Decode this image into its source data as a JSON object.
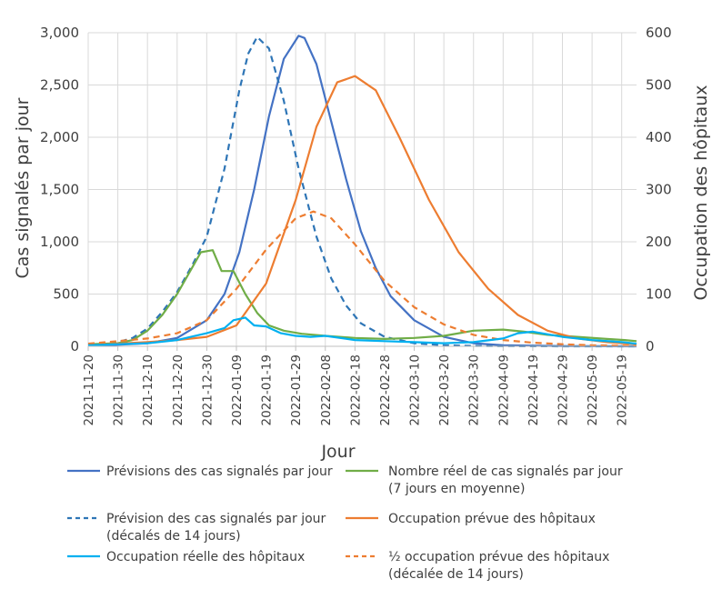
{
  "chart_data": {
    "type": "line",
    "xlabel": "Jour",
    "ylabel_left": "Cas signalés par jour",
    "ylabel_right": "Occupation des hôpitaux",
    "ylim_left": [
      0,
      3000
    ],
    "ylim_right": [
      0,
      600
    ],
    "yticks_left": [
      "0",
      "500",
      "1,000",
      "1,500",
      "2,000",
      "2,500",
      "3,000"
    ],
    "yticks_right": [
      "0",
      "100",
      "200",
      "300",
      "400",
      "500",
      "600"
    ],
    "xlim": [
      "2021-11-20",
      "2022-05-24"
    ],
    "xticks": [
      "2021-11-20",
      "2021-11-30",
      "2021-12-10",
      "2021-12-20",
      "2021-12-30",
      "2022-01-09",
      "2022-01-19",
      "2022-01-29",
      "2022-02-08",
      "2022-02-18",
      "2022-02-28",
      "2022-03-10",
      "2022-03-20",
      "2022-03-30",
      "2022-04-09",
      "2022-04-19",
      "2022-04-29",
      "2022-05-09",
      "2022-05-19"
    ],
    "grid": true,
    "legend_position": "bottom",
    "series": [
      {
        "name": "Prévisions des cas signalés par jour",
        "axis": "left",
        "color": "#4472c4",
        "dash": "solid",
        "x": [
          "2021-11-20",
          "2021-11-30",
          "2021-12-10",
          "2021-12-20",
          "2021-12-30",
          "2022-01-05",
          "2022-01-10",
          "2022-01-15",
          "2022-01-20",
          "2022-01-25",
          "2022-01-30",
          "2022-02-01",
          "2022-02-05",
          "2022-02-10",
          "2022-02-15",
          "2022-02-20",
          "2022-02-25",
          "2022-03-02",
          "2022-03-10",
          "2022-03-20",
          "2022-03-30",
          "2022-04-09",
          "2022-04-20",
          "2022-05-01",
          "2022-05-24"
        ],
        "y": [
          5,
          15,
          30,
          80,
          250,
          500,
          900,
          1500,
          2200,
          2750,
          2970,
          2950,
          2700,
          2150,
          1600,
          1100,
          750,
          480,
          250,
          90,
          30,
          10,
          5,
          2,
          0
        ]
      },
      {
        "name": "Prévision des cas signalés par jour (décalés de 14 jours)",
        "axis": "left",
        "color": "#2e75b6",
        "dash": "dashed",
        "x": [
          "2021-11-20",
          "2021-11-30",
          "2021-12-05",
          "2021-12-10",
          "2021-12-15",
          "2021-12-20",
          "2021-12-25",
          "2021-12-30",
          "2022-01-05",
          "2022-01-10",
          "2022-01-13",
          "2022-01-16",
          "2022-01-20",
          "2022-01-25",
          "2022-01-30",
          "2022-02-05",
          "2022-02-10",
          "2022-02-15",
          "2022-02-20",
          "2022-02-28",
          "2022-03-10",
          "2022-03-20",
          "2022-03-30",
          "2022-04-09",
          "2022-04-20",
          "2022-05-01",
          "2022-05-24"
        ],
        "y": [
          10,
          40,
          80,
          170,
          330,
          520,
          770,
          1050,
          1700,
          2450,
          2800,
          2960,
          2850,
          2350,
          1700,
          1050,
          650,
          390,
          220,
          90,
          30,
          10,
          4,
          2,
          1,
          0,
          0
        ]
      },
      {
        "name": "Nombre réel de cas signalés par jour (7 jours en moyenne)",
        "axis": "left",
        "color": "#70ad47",
        "dash": "solid",
        "x": [
          "2021-11-20",
          "2021-11-30",
          "2021-12-05",
          "2021-12-10",
          "2021-12-15",
          "2021-12-20",
          "2021-12-25",
          "2021-12-28",
          "2022-01-01",
          "2022-01-04",
          "2022-01-08",
          "2022-01-12",
          "2022-01-16",
          "2022-01-20",
          "2022-01-25",
          "2022-01-31",
          "2022-02-08",
          "2022-02-18",
          "2022-02-28",
          "2022-03-10",
          "2022-03-20",
          "2022-03-30",
          "2022-04-09",
          "2022-04-16",
          "2022-04-24",
          "2022-05-04",
          "2022-05-14",
          "2022-05-20",
          "2022-05-24"
        ],
        "y": [
          20,
          30,
          60,
          150,
          300,
          500,
          750,
          900,
          920,
          720,
          720,
          500,
          320,
          200,
          150,
          120,
          100,
          80,
          70,
          80,
          100,
          150,
          160,
          140,
          110,
          90,
          70,
          60,
          50
        ]
      },
      {
        "name": "Occupation prévue des hôpitaux",
        "axis": "right",
        "color": "#ed7d31",
        "dash": "solid",
        "x": [
          "2021-11-20",
          "2021-11-30",
          "2021-12-10",
          "2021-12-20",
          "2021-12-30",
          "2022-01-09",
          "2022-01-19",
          "2022-01-29",
          "2022-02-05",
          "2022-02-12",
          "2022-02-18",
          "2022-02-25",
          "2022-03-05",
          "2022-03-15",
          "2022-03-25",
          "2022-04-04",
          "2022-04-14",
          "2022-04-24",
          "2022-05-04",
          "2022-05-14",
          "2022-05-24"
        ],
        "y": [
          2,
          5,
          8,
          12,
          18,
          40,
          120,
          280,
          420,
          505,
          517,
          490,
          400,
          280,
          180,
          110,
          60,
          30,
          15,
          8,
          4
        ]
      },
      {
        "name": "½ occupation prévue des hôpitaux (décalée de 14 jours)",
        "axis": "right",
        "color": "#ed7d31",
        "dash": "dashed",
        "x": [
          "2021-11-20",
          "2021-11-30",
          "2021-12-10",
          "2021-12-20",
          "2021-12-30",
          "2022-01-09",
          "2022-01-19",
          "2022-01-29",
          "2022-02-04",
          "2022-02-10",
          "2022-02-18",
          "2022-02-28",
          "2022-03-10",
          "2022-03-20",
          "2022-03-30",
          "2022-04-09",
          "2022-04-19",
          "2022-04-29",
          "2022-05-09",
          "2022-05-24"
        ],
        "y": [
          5,
          10,
          15,
          25,
          50,
          110,
          185,
          245,
          258,
          245,
          195,
          125,
          75,
          42,
          22,
          12,
          7,
          4,
          2,
          1
        ]
      },
      {
        "name": "Occupation réelle des hôpitaux",
        "axis": "right",
        "color": "#00b0f0",
        "dash": "solid",
        "x": [
          "2021-11-20",
          "2021-11-30",
          "2021-12-10",
          "2021-12-20",
          "2021-12-30",
          "2022-01-05",
          "2022-01-08",
          "2022-01-12",
          "2022-01-15",
          "2022-01-19",
          "2022-01-24",
          "2022-01-29",
          "2022-02-03",
          "2022-02-08",
          "2022-02-18",
          "2022-02-28",
          "2022-03-10",
          "2022-03-20",
          "2022-03-30",
          "2022-04-09",
          "2022-04-14",
          "2022-04-19",
          "2022-04-29",
          "2022-05-09",
          "2022-05-19",
          "2022-05-24"
        ],
        "y": [
          2,
          4,
          6,
          12,
          25,
          35,
          50,
          55,
          40,
          38,
          25,
          20,
          18,
          20,
          12,
          10,
          8,
          6,
          8,
          15,
          25,
          28,
          18,
          12,
          8,
          5
        ]
      }
    ]
  }
}
